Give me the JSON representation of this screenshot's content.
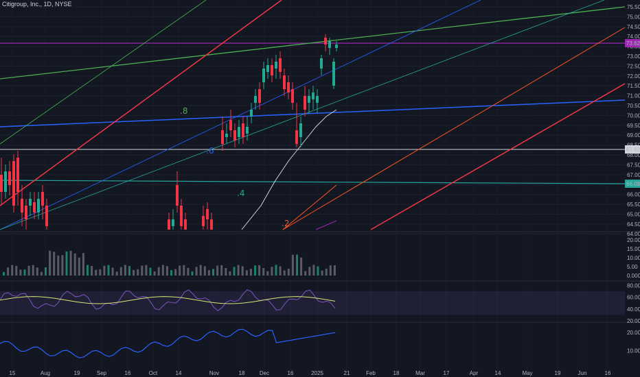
{
  "header": {
    "title": "Citigroup, Inc., 1D, NYSE"
  },
  "colors": {
    "background": "#131722",
    "up": "#22ab94",
    "down": "#f23645",
    "green_line": "#4caf50",
    "red_line": "#f23645",
    "blue_line": "#2962ff",
    "teal_line": "#26a69a",
    "orange_line": "#ff5722",
    "purple_line": "#9c27b0",
    "white_line": "#d1d4dc",
    "volume": "#787b86",
    "rsi_band": "#7e57c2",
    "rsi_ma": "#dce775",
    "indicator_line": "#2962ff"
  },
  "chart_data": [
    {
      "type": "candlestick",
      "ylim": [
        63.5,
        75.6
      ],
      "y_ticks": [
        "75.50",
        "75.00",
        "74.50",
        "74.00",
        "73.50",
        "73.00",
        "72.50",
        "72.00",
        "71.50",
        "71.00",
        "70.50",
        "70.00",
        "69.50",
        "69.00",
        "68.50",
        "68.00",
        "67.50",
        "67.00",
        "66.50",
        "66.00",
        "65.50",
        "65.00",
        "64.50",
        "64.00"
      ],
      "x_ticks": [
        "15",
        "Aug",
        "19",
        "Sep",
        "16",
        "Oct",
        "14",
        "Nov",
        "18",
        "Dec",
        "16",
        "2025",
        "21",
        "Feb",
        "18",
        "Mar",
        "17",
        "Apr",
        "14",
        "May",
        "19",
        "Jun",
        "16"
      ],
      "horizontal_levels": [
        {
          "name": "purple",
          "value": 73.62
        },
        {
          "name": "white",
          "value": 67.82
        },
        {
          "name": "teal",
          "value": 66.08
        }
      ],
      "fib_labels": [
        ".8",
        ".6",
        ".4",
        ".2"
      ],
      "price_tags": [
        {
          "value": "73.62",
          "color": "#9c27b0"
        },
        {
          "value": "67.82",
          "color": "#d1d4dc"
        },
        {
          "value": "66.08",
          "color": "#26a69a"
        }
      ]
    },
    {
      "type": "bar",
      "series": "volume",
      "y_ticks": [
        "20.00",
        "15.00",
        "10.00",
        "5.00",
        "0.0000"
      ],
      "ylim": [
        0,
        22
      ]
    },
    {
      "type": "line",
      "series": "rsi",
      "y_ticks": [
        "80.00",
        "60.00",
        "40.00",
        "20.00"
      ],
      "ylim": [
        20,
        85
      ],
      "band": [
        30,
        70
      ]
    },
    {
      "type": "line",
      "series": "indicator",
      "y_ticks": [
        "20.00",
        "10.00"
      ],
      "ylim": [
        0,
        25
      ]
    }
  ]
}
